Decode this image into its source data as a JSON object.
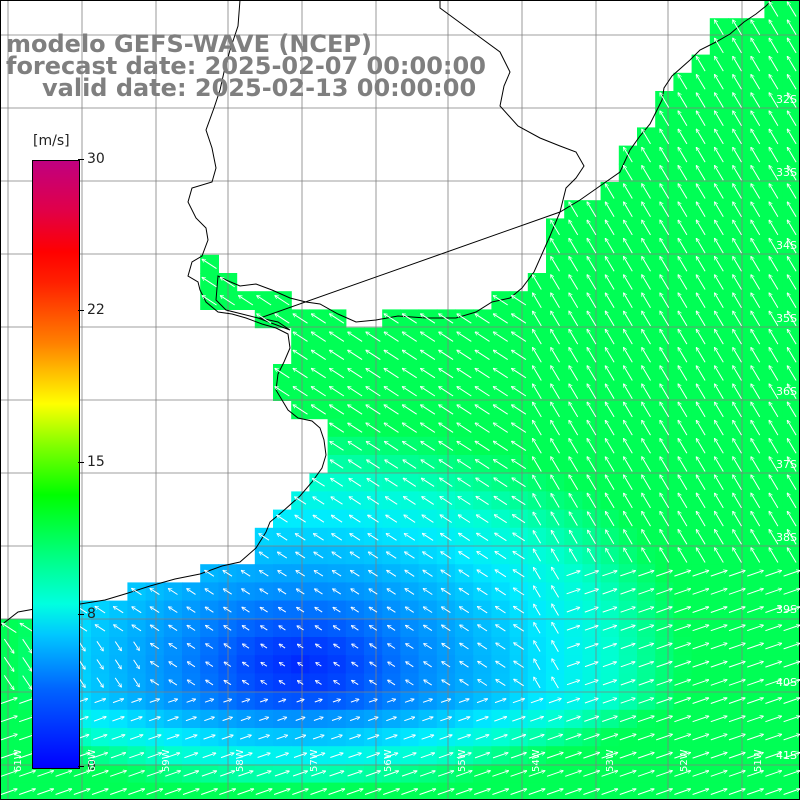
{
  "title": {
    "model_line": "modelo GEFS-WAVE (NCEP)",
    "forecast_line": "forecast date: 2025-02-07 00:00:00",
    "valid_line": "valid date: 2025-02-13 00:00:00"
  },
  "colorbar": {
    "unit": "[m/s]",
    "ticks": [
      "30",
      "22",
      "15",
      "8",
      "0"
    ],
    "range": [
      0,
      30
    ],
    "colors": [
      "#0000ff",
      "#00c8ff",
      "#00ff80",
      "#00ff00",
      "#ffff00",
      "#ff8000",
      "#ff0000",
      "#c00080"
    ]
  },
  "lat_labels": [
    "32S",
    "33S",
    "34S",
    "35S",
    "36S",
    "37S",
    "38S",
    "39S",
    "40S",
    "41S"
  ],
  "lon_labels": [
    "61W",
    "60W",
    "59W",
    "58W",
    "57W",
    "56W",
    "55W",
    "54W",
    "53W",
    "52W",
    "51W"
  ],
  "colors": {
    "land": "#ffffff",
    "coast": "#000000",
    "grid": "#7f7f7f",
    "arrow": "#ffffff",
    "text": "#7f7f7f"
  },
  "chart_data": {
    "type": "heatmap",
    "variable": "wind speed and direction",
    "unit": "m/s",
    "color_range": [
      0,
      30
    ],
    "value_range_observed": [
      2,
      12
    ],
    "dominant_direction": "winds from SE/E over the shelf, from W in the southwest corner, weak winds near 39.5S 58W"
  }
}
